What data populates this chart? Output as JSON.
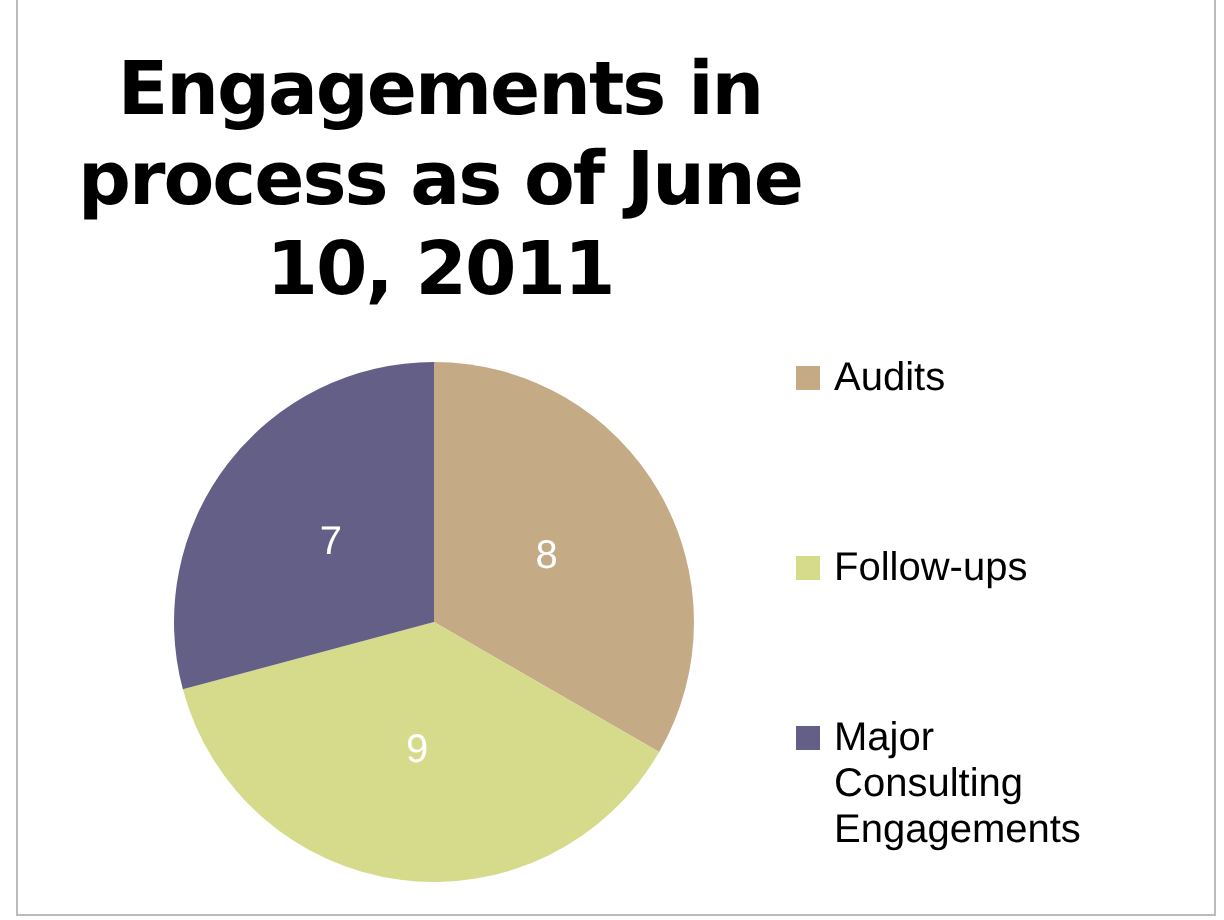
{
  "chart_data": {
    "type": "pie",
    "title": "Engagements in process as of June 10, 2011",
    "categories": [
      "Audits",
      "Follow-ups",
      "Major Consulting Engagements"
    ],
    "values": [
      8,
      9,
      7
    ],
    "colors": [
      "#c4ab85",
      "#d6db8b",
      "#645f86"
    ],
    "data_labels": true,
    "legend": "right"
  }
}
